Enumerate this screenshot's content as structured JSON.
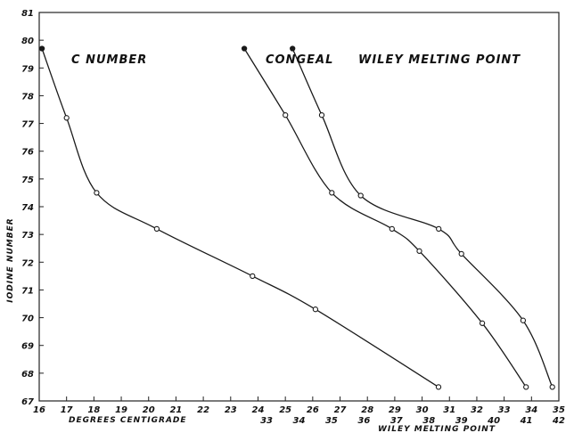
{
  "chart_data": {
    "type": "line",
    "ylabel": "IODINE NUMBER",
    "ylim": [
      67,
      81
    ],
    "y_ticks": [
      "67",
      "68",
      "69",
      "70",
      "71",
      "72",
      "73",
      "74",
      "75",
      "76",
      "77",
      "78",
      "79",
      "80",
      "81"
    ],
    "x_axes": [
      {
        "label": "DEGREES CENTIGRADE",
        "xlim": [
          16,
          35
        ],
        "ticks": [
          "16",
          "17",
          "18",
          "19",
          "20",
          "21",
          "22",
          "23",
          "24",
          "25",
          "26",
          "27",
          "28",
          "29",
          "30",
          "31",
          "32",
          "33",
          "34",
          "35"
        ]
      },
      {
        "label": "WILEY MELTING POINT",
        "xlim": [
          26,
          42
        ],
        "ticks": [
          "33",
          "34",
          "35",
          "36",
          "37",
          "38",
          "39",
          "40",
          "41",
          "42"
        ]
      }
    ],
    "series": [
      {
        "name": "C NUMBER",
        "axis": 0,
        "points": [
          [
            16.1,
            79.7
          ],
          [
            17.0,
            77.2
          ],
          [
            18.1,
            74.5
          ],
          [
            20.3,
            73.2
          ],
          [
            23.8,
            71.5
          ],
          [
            26.1,
            70.3
          ],
          [
            30.6,
            67.5
          ]
        ]
      },
      {
        "name": "CONGEAL",
        "axis": 0,
        "points": [
          [
            23.5,
            79.7
          ],
          [
            25.0,
            77.3
          ],
          [
            26.7,
            74.5
          ],
          [
            28.9,
            73.2
          ],
          [
            29.9,
            72.4
          ],
          [
            32.2,
            69.8
          ],
          [
            33.8,
            67.5
          ]
        ]
      },
      {
        "name": "WILEY MELTING POINT",
        "axis": 1,
        "points": [
          [
            33.8,
            79.7
          ],
          [
            34.7,
            77.3
          ],
          [
            35.9,
            74.4
          ],
          [
            38.3,
            73.2
          ],
          [
            39.0,
            72.3
          ],
          [
            40.9,
            69.9
          ],
          [
            41.8,
            67.5
          ]
        ]
      }
    ]
  }
}
